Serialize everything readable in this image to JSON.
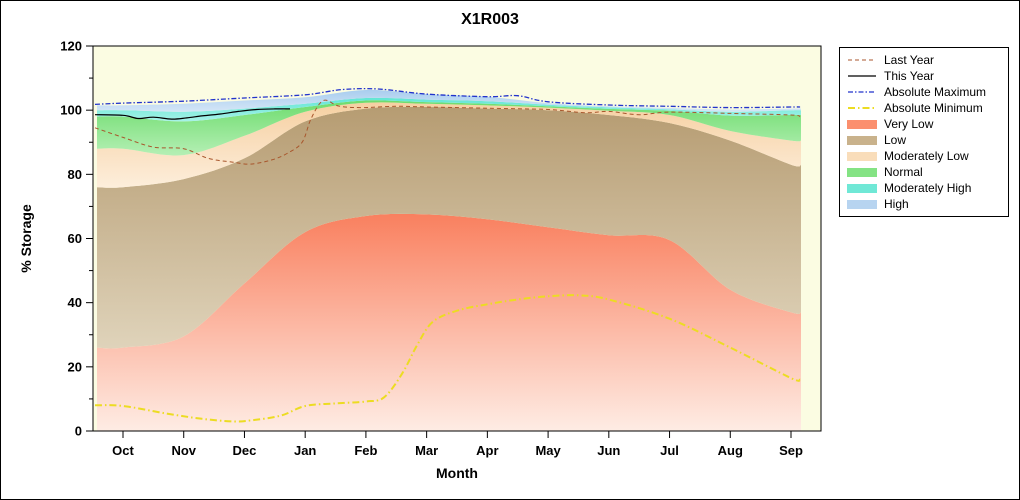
{
  "figure": {
    "background": "#ffffff",
    "border_color": "#000000"
  },
  "chart_data": {
    "type": "area",
    "title": "X1R003",
    "xlabel": "Month",
    "ylabel": "% Storage",
    "ylim": [
      0,
      120
    ],
    "yticks_major": [
      0,
      20,
      40,
      60,
      80,
      100,
      120
    ],
    "ytick_minor_step": 10,
    "categories": [
      "Oct",
      "Nov",
      "Dec",
      "Jan",
      "Feb",
      "Mar",
      "Apr",
      "May",
      "Jun",
      "Jul",
      "Aug",
      "Sep"
    ],
    "plot_background": "#fbfce2",
    "frame_color": "#000000",
    "bands": [
      {
        "name": "Very Low",
        "color_top": "#f9805f",
        "color_bottom": "#feece4",
        "upper": [
          26,
          29.5,
          46,
          62,
          67,
          67.5,
          66,
          63.5,
          61,
          59.5,
          44,
          37
        ]
      },
      {
        "name": "Low",
        "color_top": "#b69c72",
        "color_bottom": "#dfd3ba",
        "upper": [
          76,
          78.5,
          85,
          96.5,
          100.5,
          101,
          100.5,
          100,
          98.5,
          96,
          90.5,
          83
        ]
      },
      {
        "name": "Moderately Low",
        "color_top": "#f6d0a2",
        "color_bottom": "#fdeedb",
        "upper": [
          88,
          86,
          92,
          99.5,
          102.3,
          102,
          101.5,
          100.8,
          99.8,
          98.5,
          93.5,
          90.5
        ]
      },
      {
        "name": "Normal",
        "color_top": "#6edc6e",
        "color_bottom": "#b4efb4",
        "upper": [
          98,
          96.5,
          98.5,
          101,
          103,
          102.5,
          102,
          101.2,
          100.4,
          99.8,
          98.3,
          98.5
        ]
      },
      {
        "name": "Moderately High",
        "color_top": "#62e6d4",
        "color_bottom": "#a8f2e8",
        "upper": [
          100,
          99.5,
          100.5,
          102,
          103.8,
          103.3,
          102.8,
          101.7,
          100.9,
          100.3,
          99.5,
          100
        ]
      },
      {
        "name": "High",
        "color_top": "#a9cdee",
        "color_bottom": "#d4e6f7",
        "upper": [
          101.5,
          102,
          103,
          104,
          106.3,
          105,
          104.2,
          102.2,
          101.2,
          100.7,
          100.2,
          100.5
        ]
      }
    ],
    "lines": [
      {
        "name": "Absolute Minimum",
        "color": "#ecdc22",
        "width": 2,
        "dash": "7 3 1.5 3",
        "x": [
          -0.48,
          0,
          0.7,
          1.3,
          1.8,
          2.1,
          2.6,
          3,
          3.5,
          4,
          4.3,
          4.6,
          4.85,
          5.1,
          5.5,
          6,
          6.5,
          7,
          7.5,
          8,
          9,
          10,
          11,
          11.15
        ],
        "values": [
          8,
          7.8,
          5.5,
          3.8,
          3,
          3.3,
          4.8,
          7.8,
          8.6,
          9.2,
          10.5,
          18,
          27,
          34,
          37.5,
          39.5,
          41,
          42,
          42.3,
          41,
          35,
          26,
          16.5,
          16
        ]
      },
      {
        "name": "Absolute Maximum",
        "color": "#2233cc",
        "width": 1.3,
        "dash": "5 2 1.5 2",
        "x": [
          -0.48,
          0,
          1,
          2,
          3,
          3.6,
          4.2,
          5,
          6,
          6.5,
          7,
          8,
          9,
          10,
          11,
          11.15
        ],
        "values": [
          101.8,
          102.2,
          102.8,
          103.8,
          104.8,
          106.4,
          106.6,
          105,
          104.2,
          104.5,
          102.6,
          101.6,
          101.2,
          100.8,
          101,
          101
        ]
      },
      {
        "name": "Last Year",
        "color": "#a8562c",
        "width": 1,
        "dash": "4 3",
        "x": [
          -0.48,
          0,
          0.5,
          1,
          1.4,
          1.8,
          2.1,
          2.45,
          2.7,
          2.95,
          3.1,
          3.3,
          3.55,
          3.9,
          4.5,
          5,
          6,
          7,
          7.6,
          8,
          8.5,
          9,
          10,
          11,
          11.15
        ],
        "values": [
          94.5,
          91.5,
          88.5,
          88,
          85,
          83.8,
          83.2,
          84.5,
          86.5,
          90,
          97.5,
          103,
          101.3,
          100.8,
          101.2,
          101,
          100.6,
          100.2,
          99.2,
          99.6,
          98.6,
          99.4,
          99,
          98.5,
          98
        ]
      },
      {
        "name": "This Year",
        "color": "#000000",
        "width": 1.2,
        "dash": "",
        "x": [
          -0.48,
          0,
          0.25,
          0.5,
          0.8,
          1.05,
          1.3,
          1.6,
          1.9,
          2.2,
          2.5,
          2.75
        ],
        "values": [
          98.6,
          98.4,
          97.4,
          97.8,
          97.2,
          97.6,
          98.2,
          98.8,
          99.6,
          100.2,
          100.4,
          100.4
        ]
      }
    ],
    "legend": [
      {
        "label": "Last Year",
        "type": "line",
        "color": "#a8562c",
        "dash": "4 3",
        "width": 1
      },
      {
        "label": "This Year",
        "type": "line",
        "color": "#000000",
        "dash": "",
        "width": 1.2
      },
      {
        "label": "Absolute Maximum",
        "type": "line",
        "color": "#2233cc",
        "dash": "5 2 1.5 2",
        "width": 1.3
      },
      {
        "label": "Absolute Minimum",
        "type": "line",
        "color": "#ecdc22",
        "dash": "7 3 1.5 3",
        "width": 2
      },
      {
        "label": "Very Low",
        "type": "swatch",
        "color": "#fb8f6e"
      },
      {
        "label": "Low",
        "type": "swatch",
        "color": "#c9b28c"
      },
      {
        "label": "Moderately Low",
        "type": "swatch",
        "color": "#f9ddba"
      },
      {
        "label": "Normal",
        "type": "swatch",
        "color": "#84e384"
      },
      {
        "label": "Moderately High",
        "type": "swatch",
        "color": "#70e8d6"
      },
      {
        "label": "High",
        "type": "swatch",
        "color": "#b7d4f0"
      }
    ]
  }
}
